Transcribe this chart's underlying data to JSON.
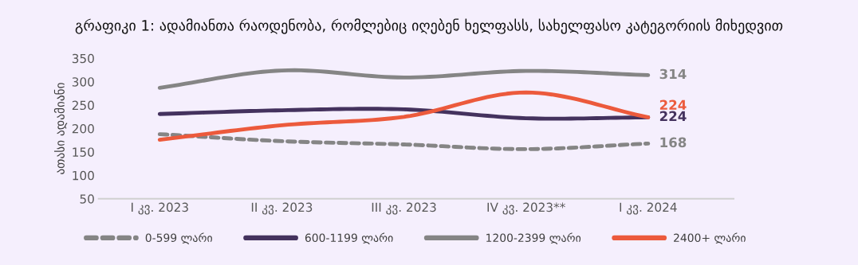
{
  "chart_data": {
    "type": "line",
    "title": "გრაფიკი 1: ადამიანთა რაოდენობა, რომლებიც იღებენ ხელფასს, სახელფასო კატეგორიის მიხედვით",
    "ylabel": "ათასი ადამიანი",
    "categories": [
      "I კვ. 2023",
      "II კვ. 2023",
      "III კვ. 2023",
      "IV კვ. 2023**",
      "I კვ. 2024"
    ],
    "ylim": [
      50,
      350
    ],
    "yticks": [
      50,
      100,
      150,
      200,
      250,
      300,
      350
    ],
    "grid": false,
    "legend": "bottom",
    "marker": "none",
    "series": [
      {
        "name": "0-599 ლარი",
        "color": "#858585",
        "line_style": "dashed",
        "values": [
          188,
          173,
          166,
          156,
          168
        ],
        "value_labels": [
          null,
          null,
          null,
          null,
          "168"
        ]
      },
      {
        "name": "600-1199 ლარი",
        "color": "#44325e",
        "line_style": "solid",
        "values": [
          231,
          239,
          241,
          222,
          224
        ],
        "value_labels": [
          null,
          null,
          null,
          null,
          "224"
        ]
      },
      {
        "name": "1200-2399 ლარი",
        "color": "#858585",
        "line_style": "solid",
        "values": [
          287,
          324,
          309,
          323,
          314
        ],
        "value_labels": [
          null,
          null,
          null,
          null,
          "314"
        ]
      },
      {
        "name": "2400+ ლარი",
        "color": "#ec5a3c",
        "line_style": "solid",
        "values": [
          176,
          207,
          225,
          277,
          224
        ],
        "value_labels": [
          null,
          null,
          null,
          null,
          "224"
        ]
      }
    ]
  }
}
